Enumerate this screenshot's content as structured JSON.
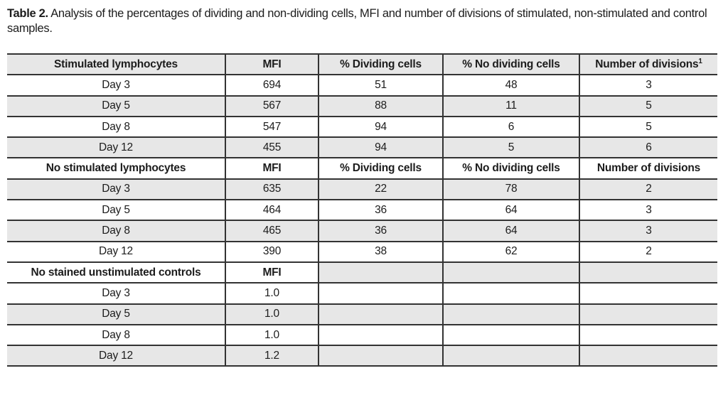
{
  "caption": {
    "label": "Table 2.",
    "text": "Analysis of the percentages of dividing and non-dividing cells, MFI and number of divisions of stimulated, non-stimulated and control samples."
  },
  "colors": {
    "shaded_row_bg": "#e7e7e7",
    "rule_color": "#333333",
    "text_color": "#1c1c1c",
    "page_bg": "#ffffff"
  },
  "table": {
    "column_keys": [
      "sample",
      "mfi",
      "pct_dividing",
      "pct_no_dividing",
      "num_divisions"
    ],
    "rows": [
      {
        "header": true,
        "sup": "1",
        "shade": [
          1,
          1,
          1,
          1,
          1
        ],
        "cells": [
          "Stimulated lymphocytes",
          "MFI",
          "% Dividing cells",
          "% No dividing cells",
          "Number of divisions"
        ]
      },
      {
        "header": false,
        "shade": [
          0,
          0,
          0,
          0,
          0
        ],
        "cells": [
          "Day 3",
          "694",
          "51",
          "48",
          "3"
        ]
      },
      {
        "header": false,
        "shade": [
          1,
          1,
          1,
          1,
          1
        ],
        "cells": [
          "Day 5",
          "567",
          "88",
          "11",
          "5"
        ]
      },
      {
        "header": false,
        "shade": [
          0,
          0,
          0,
          0,
          0
        ],
        "cells": [
          "Day 8",
          "547",
          "94",
          "6",
          "5"
        ]
      },
      {
        "header": false,
        "shade": [
          1,
          1,
          1,
          1,
          1
        ],
        "cells": [
          "Day 12",
          "455",
          "94",
          "5",
          "6"
        ]
      },
      {
        "header": true,
        "shade": [
          0,
          0,
          0,
          0,
          0
        ],
        "cells": [
          "No stimulated lymphocytes",
          "MFI",
          "% Dividing cells",
          "% No dividing cells",
          "Number of divisions"
        ]
      },
      {
        "header": false,
        "shade": [
          1,
          1,
          1,
          1,
          1
        ],
        "cells": [
          "Day 3",
          "635",
          "22",
          "78",
          "2"
        ]
      },
      {
        "header": false,
        "shade": [
          0,
          0,
          0,
          0,
          0
        ],
        "cells": [
          "Day 5",
          "464",
          "36",
          "64",
          "3"
        ]
      },
      {
        "header": false,
        "shade": [
          1,
          1,
          1,
          1,
          1
        ],
        "cells": [
          "Day 8",
          "465",
          "36",
          "64",
          "3"
        ]
      },
      {
        "header": false,
        "shade": [
          0,
          0,
          0,
          0,
          0
        ],
        "cells": [
          "Day 12",
          "390",
          "38",
          "62",
          "2"
        ]
      },
      {
        "header": true,
        "shade": [
          0,
          0,
          1,
          1,
          1
        ],
        "cells": [
          "No stained unstimulated controls",
          "MFI",
          "",
          "",
          ""
        ]
      },
      {
        "header": false,
        "shade": [
          0,
          0,
          0,
          0,
          0
        ],
        "cells": [
          "Day 3",
          "1.0",
          "",
          "",
          ""
        ]
      },
      {
        "header": false,
        "shade": [
          1,
          1,
          1,
          1,
          1
        ],
        "cells": [
          "Day 5",
          "1.0",
          "",
          "",
          ""
        ]
      },
      {
        "header": false,
        "shade": [
          0,
          0,
          0,
          0,
          0
        ],
        "cells": [
          "Day 8",
          "1.0",
          "",
          "",
          ""
        ]
      },
      {
        "header": false,
        "shade": [
          1,
          1,
          1,
          1,
          1
        ],
        "cells": [
          "Day 12",
          "1.2",
          "",
          "",
          ""
        ]
      }
    ]
  }
}
